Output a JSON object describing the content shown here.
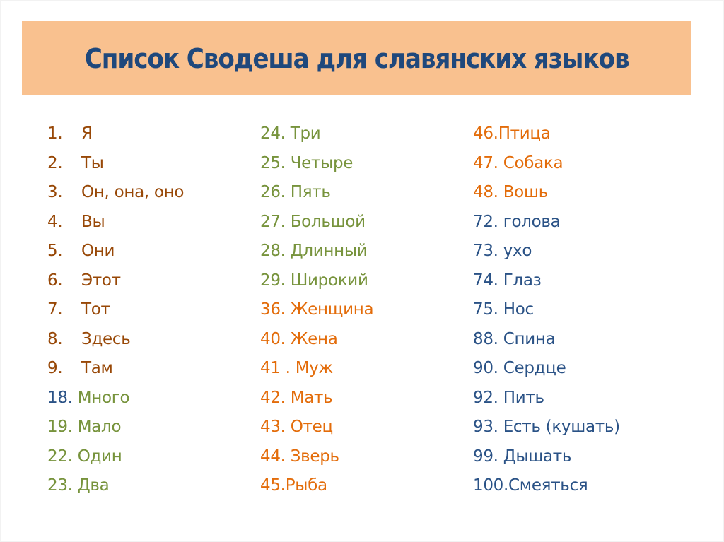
{
  "title": "Список Сводеша для славянских языков",
  "colors": {
    "banner": "#F9C18F",
    "title": "#1F487C",
    "brown": "#984807",
    "green": "#77933C",
    "orange": "#E36C0A",
    "blue": "#2A5286"
  },
  "columns": [
    {
      "items": [
        {
          "num": "1.",
          "word": "Я",
          "num_color": "brown",
          "word_color": "brown",
          "style": "list"
        },
        {
          "num": "2.",
          "word": "Ты",
          "num_color": "brown",
          "word_color": "brown",
          "style": "list"
        },
        {
          "num": "3.",
          "word": "Он, она, оно",
          "num_color": "brown",
          "word_color": "brown",
          "style": "list"
        },
        {
          "num": "4.",
          "word": "Вы",
          "num_color": "brown",
          "word_color": "brown",
          "style": "list"
        },
        {
          "num": "5.",
          "word": "Они",
          "num_color": "brown",
          "word_color": "brown",
          "style": "list"
        },
        {
          "num": "6.",
          "word": "Этот",
          "num_color": "brown",
          "word_color": "brown",
          "style": "list"
        },
        {
          "num": "7.",
          "word": "Тот",
          "num_color": "brown",
          "word_color": "brown",
          "style": "list"
        },
        {
          "num": "8.",
          "word": "Здесь",
          "num_color": "brown",
          "word_color": "brown",
          "style": "list"
        },
        {
          "num": "9.",
          "word": "Там",
          "num_color": "brown",
          "word_color": "brown",
          "style": "list"
        },
        {
          "num": "18. ",
          "word": "Много",
          "num_color": "blue",
          "word_color": "green",
          "style": "inline"
        },
        {
          "num": "19. ",
          "word": "Мало",
          "num_color": "green",
          "word_color": "green",
          "style": "inline"
        },
        {
          "num": "22. ",
          "word": "Один",
          "num_color": "green",
          "word_color": "green",
          "style": "inline"
        },
        {
          "num": "23. ",
          "word": "Два",
          "num_color": "green",
          "word_color": "green",
          "style": "inline"
        }
      ]
    },
    {
      "items": [
        {
          "num": "24. ",
          "word": "Три",
          "num_color": "green",
          "word_color": "green",
          "style": "inline"
        },
        {
          "num": "25. ",
          "word": "Четыре",
          "num_color": "green",
          "word_color": "green",
          "style": "inline"
        },
        {
          "num": "26. ",
          "word": "Пять",
          "num_color": "green",
          "word_color": "green",
          "style": "inline"
        },
        {
          "num": "27. ",
          "word": "Большой",
          "num_color": "green",
          "word_color": "green",
          "style": "inline"
        },
        {
          "num": "28. ",
          "word": "Длинный",
          "num_color": "green",
          "word_color": "green",
          "style": "inline"
        },
        {
          "num": "29. ",
          "word": "Широкий",
          "num_color": "green",
          "word_color": "green",
          "style": "inline"
        },
        {
          "num": "36. ",
          "word": "Женщина",
          "num_color": "orange",
          "word_color": "orange",
          "style": "inline"
        },
        {
          "num": "40. ",
          "word": "Жена",
          "num_color": "orange",
          "word_color": "orange",
          "style": "inline"
        },
        {
          "num": "41 . ",
          "word": "Муж",
          "num_color": "orange",
          "word_color": "orange",
          "style": "inline"
        },
        {
          "num": "42. ",
          "word": "Мать",
          "num_color": "orange",
          "word_color": "orange",
          "style": "inline"
        },
        {
          "num": "43. ",
          "word": "Отец",
          "num_color": "orange",
          "word_color": "orange",
          "style": "inline"
        },
        {
          "num": "44. ",
          "word": "Зверь",
          "num_color": "orange",
          "word_color": "orange",
          "style": "inline"
        },
        {
          "num": "45.",
          "word": "Рыба",
          "num_color": "orange",
          "word_color": "orange",
          "style": "inline"
        }
      ]
    },
    {
      "items": [
        {
          "num": "46.",
          "word": "Птица",
          "num_color": "orange",
          "word_color": "orange",
          "style": "inline"
        },
        {
          "num": "47. ",
          "word": "Собака",
          "num_color": "orange",
          "word_color": "orange",
          "style": "inline"
        },
        {
          "num": "48. ",
          "word": "Вошь",
          "num_color": "orange",
          "word_color": "orange",
          "style": "inline"
        },
        {
          "num": "72. ",
          "word": "голова",
          "num_color": "blue",
          "word_color": "blue",
          "style": "inline"
        },
        {
          "num": "73. ",
          "word": "ухо",
          "num_color": "blue",
          "word_color": "blue",
          "style": "inline"
        },
        {
          "num": "74. ",
          "word": "Глаз",
          "num_color": "blue",
          "word_color": "blue",
          "style": "inline"
        },
        {
          "num": "75. ",
          "word": "Нос",
          "num_color": "blue",
          "word_color": "blue",
          "style": "inline"
        },
        {
          "num": "88. ",
          "word": "Спина",
          "num_color": "blue",
          "word_color": "blue",
          "style": "inline"
        },
        {
          "num": "90. ",
          "word": "Сердце",
          "num_color": "blue",
          "word_color": "blue",
          "style": "inline"
        },
        {
          "num": "92. ",
          "word": "Пить",
          "num_color": "blue",
          "word_color": "blue",
          "style": "inline"
        },
        {
          "num": "93. ",
          "word": "Есть (кушать)",
          "num_color": "blue",
          "word_color": "blue",
          "style": "inline"
        },
        {
          "num": "99. ",
          "word": "Дышать",
          "num_color": "blue",
          "word_color": "blue",
          "style": "inline"
        },
        {
          "num": "100.",
          "word": "Смеяться",
          "num_color": "blue",
          "word_color": "blue",
          "style": "inline"
        }
      ]
    }
  ]
}
